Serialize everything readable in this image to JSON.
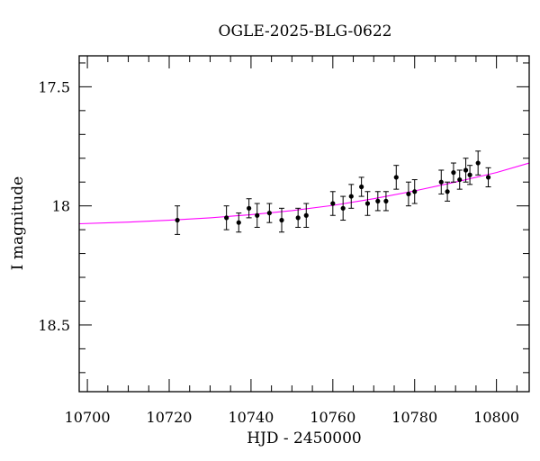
{
  "chart_data": {
    "type": "scatter",
    "title": "OGLE-2025-BLG-0622",
    "xlabel": "HJD - 2450000",
    "ylabel": "I magnitude",
    "xlim": [
      10698,
      10808
    ],
    "ylim": [
      18.78,
      17.37
    ],
    "y_inverted": true,
    "xticks": {
      "labels": [
        "10700",
        "10720",
        "10740",
        "10760",
        "10780",
        "10800"
      ],
      "values": [
        10700,
        10720,
        10740,
        10760,
        10780,
        10800
      ]
    },
    "yticks": {
      "labels": [
        "17.5",
        "18",
        "18.5"
      ],
      "values": [
        17.5,
        18.0,
        18.5
      ]
    },
    "grid": false,
    "series": [
      {
        "kind": "points_with_errorbars",
        "color": "#000000",
        "points": [
          {
            "x": 10722.0,
            "y": 18.06,
            "err": 0.06
          },
          {
            "x": 10734.0,
            "y": 18.05,
            "err": 0.05
          },
          {
            "x": 10737.0,
            "y": 18.07,
            "err": 0.04
          },
          {
            "x": 10739.5,
            "y": 18.01,
            "err": 0.04
          },
          {
            "x": 10741.5,
            "y": 18.04,
            "err": 0.05
          },
          {
            "x": 10744.5,
            "y": 18.03,
            "err": 0.04
          },
          {
            "x": 10747.5,
            "y": 18.06,
            "err": 0.05
          },
          {
            "x": 10751.5,
            "y": 18.05,
            "err": 0.04
          },
          {
            "x": 10753.5,
            "y": 18.04,
            "err": 0.05
          },
          {
            "x": 10760.0,
            "y": 17.99,
            "err": 0.05
          },
          {
            "x": 10762.5,
            "y": 18.01,
            "err": 0.05
          },
          {
            "x": 10764.5,
            "y": 17.96,
            "err": 0.05
          },
          {
            "x": 10767.0,
            "y": 17.92,
            "err": 0.04
          },
          {
            "x": 10768.5,
            "y": 17.99,
            "err": 0.05
          },
          {
            "x": 10771.0,
            "y": 17.98,
            "err": 0.04
          },
          {
            "x": 10773.0,
            "y": 17.98,
            "err": 0.04
          },
          {
            "x": 10775.5,
            "y": 17.88,
            "err": 0.05
          },
          {
            "x": 10778.5,
            "y": 17.95,
            "err": 0.05
          },
          {
            "x": 10780.0,
            "y": 17.94,
            "err": 0.05
          },
          {
            "x": 10786.5,
            "y": 17.9,
            "err": 0.05
          },
          {
            "x": 10788.0,
            "y": 17.94,
            "err": 0.04
          },
          {
            "x": 10789.5,
            "y": 17.86,
            "err": 0.04
          },
          {
            "x": 10791.0,
            "y": 17.89,
            "err": 0.04
          },
          {
            "x": 10792.5,
            "y": 17.85,
            "err": 0.05
          },
          {
            "x": 10793.5,
            "y": 17.87,
            "err": 0.04
          },
          {
            "x": 10795.5,
            "y": 17.82,
            "err": 0.05
          },
          {
            "x": 10798.0,
            "y": 17.88,
            "err": 0.04
          }
        ]
      },
      {
        "kind": "model_curve",
        "color": "#ff00ff",
        "x": [
          10698,
          10710,
          10720,
          10730,
          10740,
          10750,
          10760,
          10770,
          10780,
          10790,
          10800,
          10808
        ],
        "y": [
          18.075,
          18.068,
          18.06,
          18.05,
          18.037,
          18.02,
          17.998,
          17.97,
          17.937,
          17.9,
          17.86,
          17.82
        ]
      }
    ]
  }
}
